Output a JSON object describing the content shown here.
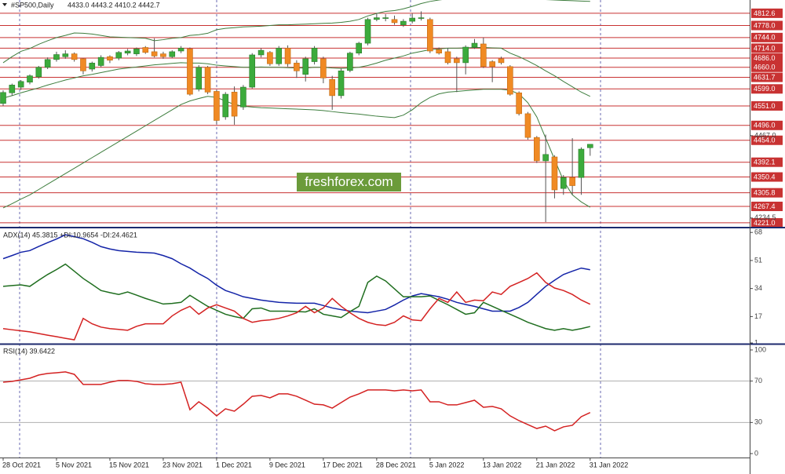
{
  "header": {
    "title": "#SP500,Daily",
    "ohlc_text": "4433.0 4443.2 4410.2 4442.7"
  },
  "watermark": "freshforex.com",
  "chart_data": [
    {
      "type": "candlestick",
      "ylim": [
        4212,
        4850
      ],
      "up_color": "#3cab3c",
      "down_color": "#f08a24",
      "open": [
        4558,
        4588,
        4604,
        4618,
        4633,
        4660,
        4682,
        4690,
        4698,
        4684,
        4655,
        4665,
        4690,
        4686,
        4700,
        4698,
        4716,
        4704,
        4698,
        4690,
        4706,
        4712,
        4598,
        4660,
        4592,
        4520,
        4590,
        4548,
        4604,
        4695,
        4702,
        4670,
        4714,
        4672,
        4640,
        4676,
        4684,
        4626,
        4580,
        4651,
        4700,
        4728,
        4795,
        4798,
        4795,
        4780,
        4790,
        4798,
        4795,
        4710,
        4704,
        4684,
        4673,
        4717,
        4726,
        4676,
        4684,
        4662,
        4588,
        4529,
        4462,
        4396,
        4407,
        4318,
        4349,
        4349,
        4433
      ],
      "high": [
        4595,
        4614,
        4624,
        4640,
        4664,
        4688,
        4704,
        4708,
        4702,
        4686,
        4676,
        4694,
        4694,
        4706,
        4712,
        4716,
        4720,
        4742,
        4704,
        4708,
        4720,
        4716,
        4666,
        4664,
        4596,
        4590,
        4606,
        4610,
        4700,
        4714,
        4706,
        4720,
        4722,
        4680,
        4690,
        4720,
        4690,
        4636,
        4656,
        4704,
        4732,
        4800,
        4812,
        4810,
        4806,
        4796,
        4812,
        4818,
        4800,
        4716,
        4714,
        4690,
        4722,
        4740,
        4744,
        4680,
        4690,
        4666,
        4592,
        4534,
        4466,
        4470,
        4412,
        4356,
        4460,
        4434,
        4443.2
      ],
      "low": [
        4551,
        4580,
        4596,
        4612,
        4628,
        4655,
        4676,
        4684,
        4676,
        4640,
        4648,
        4660,
        4672,
        4680,
        4694,
        4692,
        4698,
        4688,
        4684,
        4686,
        4700,
        4580,
        4592,
        4584,
        4500,
        4512,
        4498,
        4540,
        4600,
        4688,
        4664,
        4664,
        4662,
        4630,
        4620,
        4668,
        4615,
        4540,
        4572,
        4646,
        4694,
        4722,
        4790,
        4790,
        4780,
        4774,
        4784,
        4792,
        4700,
        4696,
        4668,
        4590,
        4640,
        4712,
        4658,
        4618,
        4668,
        4580,
        4524,
        4456,
        4390,
        4223,
        4290,
        4300,
        4300,
        4300,
        4410.2
      ],
      "close": [
        4589,
        4610,
        4620,
        4636,
        4660,
        4682,
        4696,
        4698,
        4682,
        4650,
        4672,
        4688,
        4680,
        4702,
        4706,
        4712,
        4702,
        4692,
        4690,
        4704,
        4714,
        4584,
        4660,
        4590,
        4510,
        4584,
        4522,
        4604,
        4695,
        4708,
        4670,
        4714,
        4670,
        4650,
        4684,
        4714,
        4630,
        4580,
        4650,
        4700,
        4728,
        4795,
        4800,
        4800,
        4786,
        4790,
        4799,
        4800,
        4706,
        4700,
        4673,
        4673,
        4717,
        4728,
        4662,
        4662,
        4673,
        4584,
        4529,
        4462,
        4396,
        4414,
        4314,
        4349,
        4326,
        4429,
        4442.7
      ],
      "series": [
        {
          "color": "#3d7d3d",
          "values": [
            4673,
            4690,
            4705,
            4713,
            4725,
            4735,
            4744,
            4750,
            4757,
            4756,
            4754,
            4750,
            4746,
            4745,
            4744,
            4743,
            4742,
            4735,
            4738,
            4742,
            4744,
            4750,
            4752,
            4756,
            4766,
            4770,
            4772,
            4774,
            4775,
            4776,
            4778,
            4780,
            4780,
            4781,
            4782,
            4783,
            4784,
            4785,
            4787,
            4790,
            4795,
            4805,
            4812,
            4818,
            4820,
            4825,
            4832,
            4840,
            4846,
            4850,
            4853,
            4855,
            4856,
            4857,
            4858,
            4858,
            4857,
            4856,
            4855,
            4854,
            4852,
            4851,
            4850,
            4849,
            4848,
            4847,
            4846
          ]
        },
        {
          "color": "#3d7d3d",
          "values": [
            4573,
            4580,
            4588,
            4595,
            4602,
            4610,
            4617,
            4624,
            4630,
            4636,
            4640,
            4645,
            4650,
            4655,
            4658,
            4661,
            4664,
            4667,
            4669,
            4671,
            4673,
            4672,
            4672,
            4670,
            4666,
            4664,
            4662,
            4660,
            4660,
            4661,
            4660,
            4660,
            4659,
            4658,
            4658,
            4660,
            4660,
            4658,
            4657,
            4658,
            4660,
            4665,
            4672,
            4680,
            4686,
            4692,
            4700,
            4705,
            4710,
            4712,
            4714,
            4714,
            4715,
            4716,
            4716,
            4715,
            4714,
            4700,
            4690,
            4678,
            4665,
            4650,
            4636,
            4620,
            4605,
            4590,
            4578
          ]
        },
        {
          "color": "#3d7d3d",
          "values": [
            4263,
            4275,
            4288,
            4300,
            4315,
            4330,
            4345,
            4360,
            4375,
            4390,
            4405,
            4420,
            4435,
            4450,
            4465,
            4480,
            4495,
            4510,
            4525,
            4540,
            4555,
            4565,
            4572,
            4578,
            4575,
            4565,
            4555,
            4550,
            4548,
            4546,
            4545,
            4544,
            4543,
            4542,
            4541,
            4540,
            4538,
            4535,
            4532,
            4530,
            4528,
            4525,
            4522,
            4520,
            4518,
            4525,
            4540,
            4560,
            4575,
            4585,
            4590,
            4592,
            4594,
            4596,
            4598,
            4598,
            4598,
            4595,
            4585,
            4560,
            4520,
            4460,
            4400,
            4340,
            4300,
            4280,
            4265
          ]
        }
      ],
      "level_color": "#c83232",
      "levels": [
        4812.6,
        {
          "value": 4778.0,
          "label": "4778.0"
        },
        {
          "value": 4744.0,
          "label": "4744.0"
        },
        {
          "value": 4714.0,
          "label": "4714.0"
        },
        {
          "value": 4686.0,
          "label": "4686.0"
        },
        {
          "value": 4660.0,
          "label": "4660.0"
        },
        4631.7,
        {
          "value": 4599.0,
          "label": "4599.0"
        },
        {
          "value": 4551.0,
          "label": "4551.0"
        },
        {
          "value": 4496.0,
          "label": "4496.0"
        },
        {
          "value": 4454.0,
          "label": "4454.0"
        },
        4392.1,
        4350.4,
        4305.8,
        4267.4,
        {
          "value": 4221.0,
          "label": "4221.0"
        }
      ],
      "yticks": [
        {
          "value": 4467.0,
          "label": "4467.0"
        },
        4234.5
      ]
    },
    {
      "type": "line",
      "title": "ADX(14) 45.3815 +DI:10.9654 -DI:24.4621",
      "ylim": [
        1,
        70
      ],
      "yticks": [
        68,
        51,
        34,
        17,
        1
      ],
      "series": [
        {
          "color": "#1424a8",
          "values": [
            52.1,
            54,
            56,
            57,
            59.5,
            61.8,
            64,
            66.6,
            65.5,
            64.2,
            62,
            59.4,
            58,
            57,
            56.5,
            56,
            55.8,
            55.5,
            54,
            52.1,
            49,
            46.4,
            43,
            40.1,
            36,
            32.8,
            31,
            29,
            28,
            27,
            26.3,
            25.6,
            25.3,
            25.1,
            25.1,
            25.1,
            23.7,
            22.2,
            21.2,
            20.3,
            19.8,
            19.3,
            20.3,
            21.3,
            24,
            27,
            29.5,
            30.9,
            30,
            29,
            27.5,
            25.6,
            24.3,
            23.2,
            21.7,
            20.3,
            20.3,
            20.3,
            22.5,
            25.6,
            30.5,
            35.3,
            39,
            42.5,
            44.5,
            46.4,
            45.3815
          ]
        },
        {
          "color": "#1f6e1f",
          "values": [
            35.3,
            35.8,
            36.2,
            35.3,
            39,
            42.5,
            45.5,
            48.8,
            44.5,
            40.1,
            36.5,
            32.8,
            31.5,
            30.4,
            31.9,
            30,
            28,
            26.3,
            24.6,
            25,
            25.6,
            29.9,
            26.5,
            23.2,
            20.8,
            18.4,
            17,
            15.9,
            21.7,
            22.2,
            20.3,
            20.3,
            20.3,
            20,
            19.8,
            21.7,
            18.4,
            17.4,
            16.4,
            20,
            23.2,
            37.7,
            41.5,
            38.6,
            33.8,
            29,
            29,
            29,
            29.5,
            26.8,
            24.2,
            21.3,
            18.4,
            19.3,
            25.6,
            23.2,
            20.8,
            18.4,
            16,
            13.5,
            11.6,
            9.7,
            8.7,
            9.7,
            8.7,
            9.7,
            10.9654
          ]
        },
        {
          "color": "#d42222",
          "values": [
            9.7,
            9,
            8.4,
            7.7,
            6.7,
            5.7,
            4.8,
            3.8,
            2.9,
            15.9,
            12.6,
            10.6,
            9.7,
            9.2,
            8.7,
            11.1,
            12.6,
            12.6,
            12.6,
            17.4,
            20.8,
            23.2,
            18.4,
            22.2,
            24.2,
            22.2,
            20.3,
            15.9,
            13.5,
            14.5,
            15,
            15.9,
            17.4,
            19.3,
            23.2,
            19.3,
            22.2,
            28,
            23.2,
            19.3,
            15.9,
            13.5,
            12.1,
            11.6,
            13.5,
            17.4,
            15,
            14.5,
            21.7,
            28,
            25.6,
            31.9,
            25.6,
            27,
            26.6,
            31.9,
            30.4,
            35.3,
            37.7,
            40.1,
            43.5,
            37.7,
            34.3,
            32.8,
            30.4,
            27,
            24.4621
          ]
        }
      ]
    },
    {
      "type": "line",
      "title": "RSI(14) 39.6422",
      "ylim": [
        -3.8,
        104.5
      ],
      "yticks": [
        100,
        70,
        30,
        0
      ],
      "levels": [
        70,
        30
      ],
      "level_color": "#b0b0b0",
      "series": [
        {
          "color": "#d42222",
          "values": [
            68.9,
            69.7,
            71.2,
            72.7,
            75.8,
            77.3,
            78,
            78.8,
            76.5,
            66.7,
            66.7,
            66.7,
            68.9,
            70.5,
            70.5,
            69.7,
            67.4,
            66.7,
            66.7,
            67.4,
            68.9,
            42.4,
            50,
            43.9,
            36.4,
            43.2,
            40.9,
            47.7,
            55.3,
            56.1,
            53.8,
            57.6,
            57.6,
            55.3,
            51.5,
            47.7,
            47,
            43.9,
            49.2,
            54.5,
            57.6,
            61.4,
            61.4,
            61.4,
            60.6,
            61.4,
            60.6,
            61.4,
            50,
            50,
            47,
            47,
            49.2,
            51.5,
            44.7,
            45.5,
            43.2,
            36.4,
            31.8,
            28,
            24.2,
            26.5,
            22,
            25.8,
            27.3,
            35.6,
            39.6422
          ]
        }
      ],
      "categories": [
        "28 Oct 2021",
        null,
        null,
        null,
        null,
        null,
        "5 Nov 2021",
        null,
        null,
        null,
        null,
        null,
        "15 Nov 2021",
        null,
        null,
        null,
        null,
        null,
        "23 Nov 2021",
        null,
        null,
        null,
        null,
        null,
        "1 Dec 2021",
        null,
        null,
        null,
        null,
        null,
        "9 Dec 2021",
        null,
        null,
        null,
        null,
        null,
        "17 Dec 2021",
        null,
        null,
        null,
        null,
        null,
        "28 Dec 2021",
        null,
        null,
        null,
        null,
        null,
        "5 Jan 2022",
        null,
        null,
        null,
        null,
        null,
        "13 Jan 2022",
        null,
        null,
        null,
        null,
        null,
        "21 Jan 2022",
        null,
        null,
        null,
        null,
        null,
        "31 Jan 2022"
      ]
    }
  ]
}
